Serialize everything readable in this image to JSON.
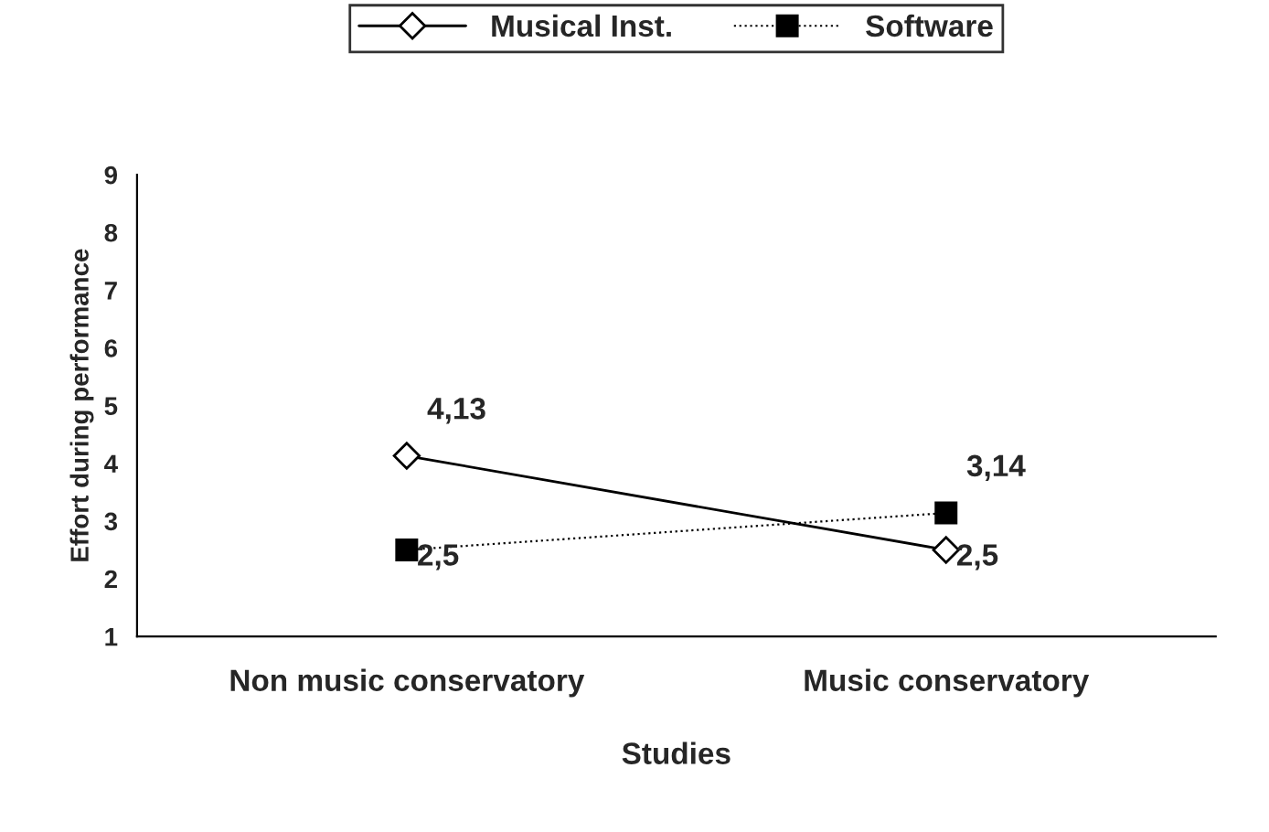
{
  "chart_data": {
    "type": "line",
    "categories": [
      "Non music conservatory",
      "Music conservatory"
    ],
    "xlabel": "Studies",
    "ylabel": "Effort during performance",
    "ylim": [
      1,
      9
    ],
    "yticks": [
      1,
      2,
      3,
      4,
      5,
      6,
      7,
      8,
      9
    ],
    "series": [
      {
        "name": "Musical Inst.",
        "color": "#000000",
        "values": [
          4.13,
          2.5
        ],
        "value_labels": [
          "4,13",
          "2,5"
        ],
        "marker": "diamond",
        "line_style": "solid"
      },
      {
        "name": "Software",
        "color": "#000000",
        "values": [
          2.5,
          3.14
        ],
        "value_labels": [
          "2,5",
          "3,14"
        ],
        "marker": "square",
        "line_style": "dotted"
      }
    ],
    "grid": false,
    "legend": "top"
  }
}
